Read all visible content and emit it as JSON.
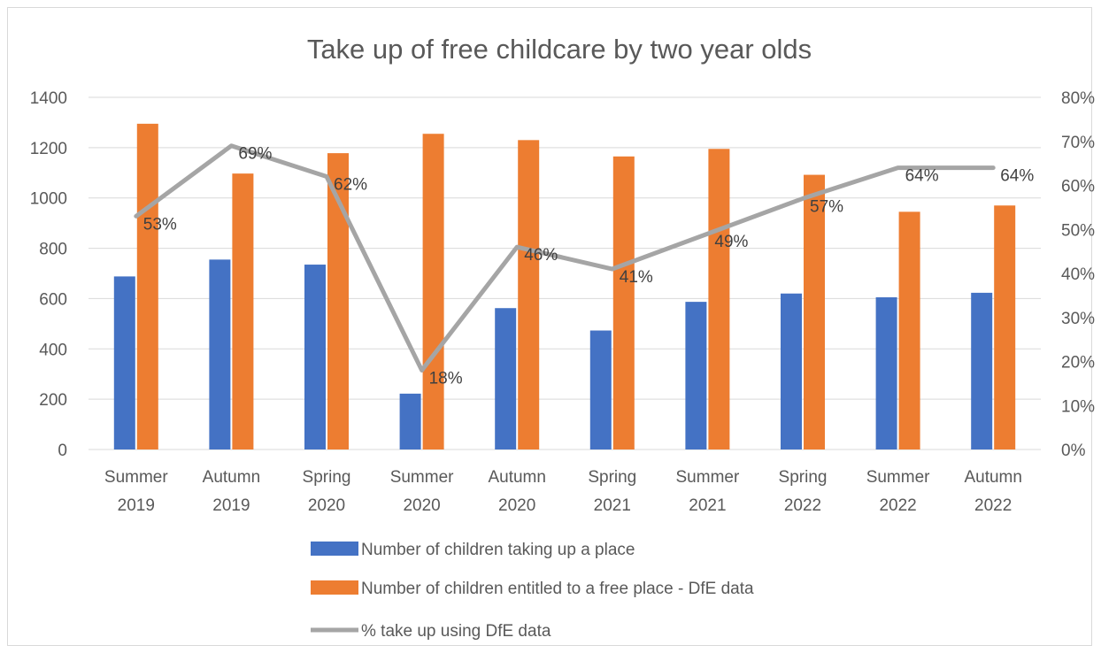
{
  "chart_data": {
    "type": "bar",
    "title": "Take up of free childcare by two year olds",
    "categories": [
      [
        "Summer",
        "2019"
      ],
      [
        "Autumn",
        "2019"
      ],
      [
        "Spring",
        "2020"
      ],
      [
        "Summer",
        "2020"
      ],
      [
        "Autumn",
        "2020"
      ],
      [
        "Spring",
        "2021"
      ],
      [
        "Summer",
        "2021"
      ],
      [
        "Spring",
        "2022"
      ],
      [
        "Summer",
        "2022"
      ],
      [
        "Autumn",
        "2022"
      ]
    ],
    "series": [
      {
        "name": "Number of children taking up a place",
        "type": "bar",
        "axis": "left",
        "color": "#4472c4",
        "values": [
          688,
          755,
          735,
          222,
          562,
          473,
          587,
          620,
          605,
          623
        ]
      },
      {
        "name": "Number of children entitled to a free place - DfE data",
        "type": "bar",
        "axis": "left",
        "color": "#ed7d31",
        "values": [
          1295,
          1097,
          1178,
          1255,
          1230,
          1165,
          1195,
          1092,
          945,
          970
        ]
      },
      {
        "name": "% take up using DfE data",
        "type": "line",
        "axis": "right",
        "color": "#a5a5a5",
        "values": [
          53,
          69,
          62,
          18,
          46,
          41,
          49,
          57,
          64,
          64
        ],
        "labels": [
          "53%",
          "69%",
          "62%",
          "18%",
          "46%",
          "41%",
          "49%",
          "57%",
          "64%",
          "64%"
        ]
      }
    ],
    "y_left": {
      "min": 0,
      "max": 1400,
      "ticks": [
        "0",
        "200",
        "400",
        "600",
        "800",
        "1000",
        "1200",
        "1400"
      ]
    },
    "y_right": {
      "min": 0,
      "max": 80,
      "ticks": [
        "0%",
        "10%",
        "20%",
        "30%",
        "40%",
        "50%",
        "60%",
        "70%",
        "80%"
      ]
    },
    "grid": true,
    "legend": "bottom"
  }
}
